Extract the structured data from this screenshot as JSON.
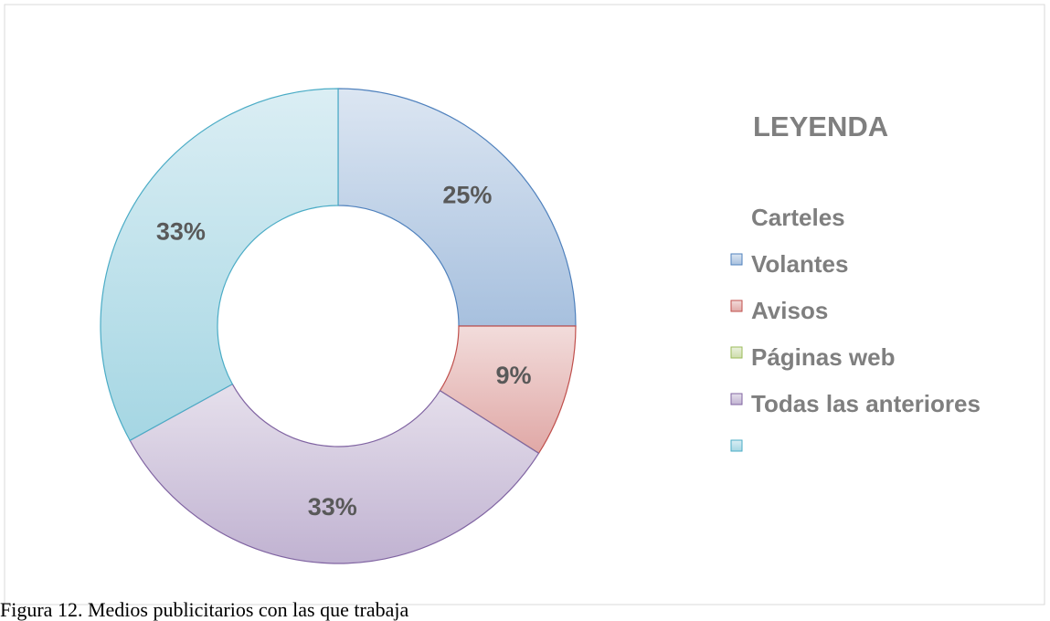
{
  "chart_data": {
    "type": "donut",
    "legend_title": "LEYENDA",
    "series": [
      {
        "name": "Carteles",
        "color": "#4f81bd",
        "values": [
          25
        ],
        "value_labels": [
          "25%"
        ]
      },
      {
        "name": "Volantes",
        "color": "#c0504d",
        "values": [
          9
        ],
        "value_labels": [
          "9%"
        ]
      },
      {
        "name": "Avisos",
        "color": "#9bbb59",
        "values": [
          0
        ],
        "value_labels": [
          null
        ]
      },
      {
        "name": "Páginas web",
        "color": "#8064a2",
        "values": [
          33
        ],
        "value_labels": [
          "33%"
        ]
      },
      {
        "name": "Todas las anteriores",
        "color": "#4bacc6",
        "values": [
          33
        ],
        "value_labels": [
          "33%"
        ]
      }
    ],
    "legend": "right",
    "caption": "Figura 12. Medios publicitarios con las que trabaja"
  }
}
